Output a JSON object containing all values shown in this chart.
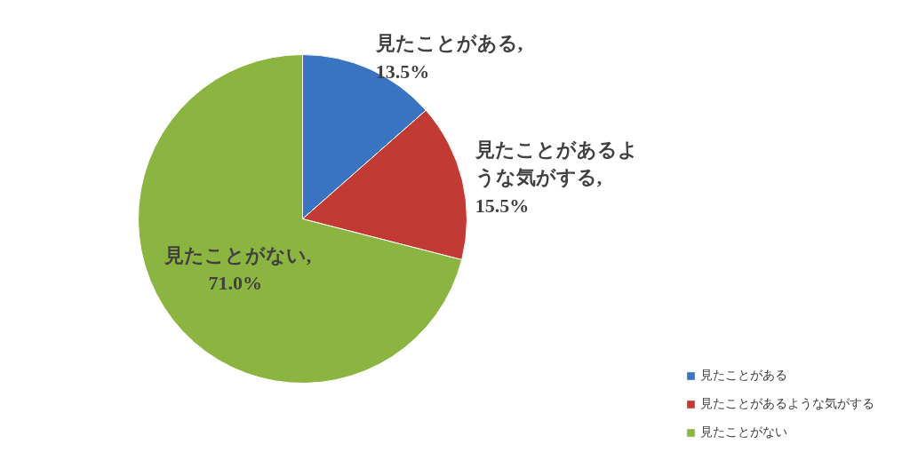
{
  "chart_data": {
    "type": "pie",
    "categories": [
      "見たことがある",
      "見たことがあるような気がする",
      "見たことがない"
    ],
    "values": [
      13.5,
      15.5,
      71.0
    ],
    "colors": [
      "#3a74c0",
      "#c13a34",
      "#8cb440"
    ],
    "value_labels": [
      "見たことがある, 13.5%",
      "見たことがあるような気がする, 15.5%",
      "見たことがない, 71.0%"
    ],
    "legend": "bottom right"
  }
}
